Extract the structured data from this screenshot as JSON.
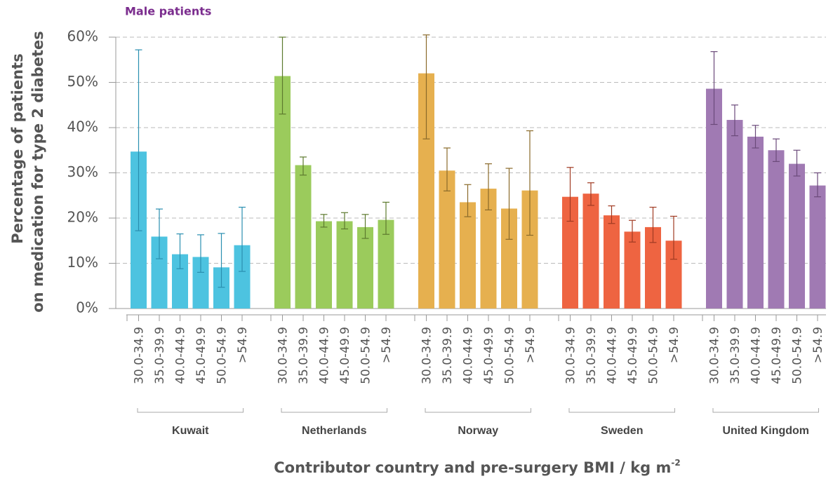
{
  "chart_data": {
    "type": "bar",
    "subtitle": "Male patients",
    "y_label": [
      "Percentage of patients",
      "on medication for type 2 diabetes"
    ],
    "x_label": [
      "Contributor country and pre-surgery BMI / kg m",
      "-2"
    ],
    "categories": [
      "30.0-34.9",
      "35.0-39.9",
      "40.0-44.9",
      "45.0-49.9",
      "50.0-54.9",
      ">54.9"
    ],
    "series": [
      {
        "name": "Kuwait",
        "color": "#4dc3e0",
        "error_color": "#2a8fb0",
        "values": [
          34.7,
          15.9,
          12,
          11.4,
          9.1,
          14
        ],
        "lower": [
          17.2,
          11,
          8.8,
          8,
          4.7,
          8.2
        ],
        "upper": [
          57.2,
          22,
          16.5,
          16.3,
          16.6,
          22.4
        ]
      },
      {
        "name": "Netherlands",
        "color": "#9bcb5c",
        "error_color": "#5d7a2e",
        "values": [
          51.4,
          31.7,
          19.3,
          19.3,
          18,
          19.6
        ],
        "lower": [
          43,
          29.5,
          18,
          17.6,
          15.5,
          16.4
        ],
        "upper": [
          60,
          33.5,
          20.8,
          21.2,
          20.8,
          23.5
        ]
      },
      {
        "name": "Norway",
        "color": "#e6b04f",
        "error_color": "#8a6a2a",
        "values": [
          52,
          30.5,
          23.5,
          26.5,
          22.1,
          26.1
        ],
        "lower": [
          37.5,
          26,
          20.3,
          21.8,
          15.3,
          16.2
        ],
        "upper": [
          60.5,
          35.5,
          27.4,
          32,
          31,
          39.3
        ]
      },
      {
        "name": "Sweden",
        "color": "#ee6441",
        "error_color": "#a03a22",
        "values": [
          24.7,
          25.4,
          20.6,
          17,
          18,
          15
        ],
        "lower": [
          19.3,
          22.8,
          18.8,
          14.7,
          14.6,
          10.9
        ],
        "upper": [
          31.2,
          27.8,
          22.7,
          19.5,
          22.4,
          20.4
        ]
      },
      {
        "name": "United Kingdom",
        "color": "#a07ab3",
        "error_color": "#6b4a7a",
        "values": [
          48.6,
          41.7,
          38,
          35,
          32,
          27.2
        ],
        "lower": [
          40.7,
          38.2,
          35.5,
          32.5,
          29.3,
          24.7
        ],
        "upper": [
          56.8,
          45,
          40.5,
          37.5,
          35,
          30
        ]
      }
    ],
    "ylim": [
      0,
      60
    ],
    "yticks": [
      {
        "value": 0,
        "label": "0%"
      },
      {
        "value": 10,
        "label": "10%"
      },
      {
        "value": 20,
        "label": "20%"
      },
      {
        "value": 30,
        "label": "30%"
      },
      {
        "value": 40,
        "label": "40%"
      },
      {
        "value": 50,
        "label": "50%"
      },
      {
        "value": 60,
        "label": "60%"
      }
    ],
    "grid": true
  }
}
